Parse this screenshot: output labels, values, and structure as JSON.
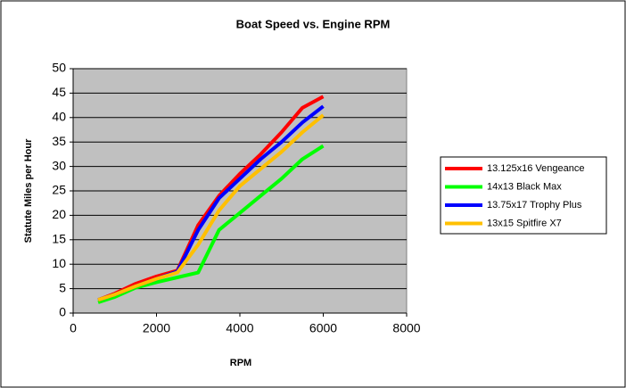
{
  "chart_data": {
    "type": "line",
    "title": "Boat Speed vs. Engine RPM",
    "x_label": "RPM",
    "y_label": "Statute Miles per Hour",
    "x": [
      600,
      1000,
      1500,
      2000,
      2500,
      3000,
      3500,
      4000,
      4500,
      5000,
      5500,
      6000
    ],
    "series": [
      {
        "name": "13.125x16 Vengeance",
        "color": "#ff0000",
        "values": [
          2.7,
          4,
          6,
          7.5,
          8.7,
          18,
          24,
          28.5,
          32.5,
          37,
          42,
          44.3
        ]
      },
      {
        "name": "14x13 Black Max",
        "color": "#00ff00",
        "values": [
          2.2,
          3.3,
          5.2,
          6.3,
          7.3,
          8.3,
          17,
          20.5,
          24,
          27.5,
          31.5,
          34.2
        ]
      },
      {
        "name": "13.75x17 Trophy Plus",
        "color": "#0000ff",
        "values": [
          2.7,
          3.8,
          5.5,
          7,
          8.5,
          17,
          23.5,
          27.5,
          31.5,
          35,
          39,
          42.3
        ]
      },
      {
        "name": "13x15 Spitfire X7",
        "color": "#ffc000",
        "values": [
          2.7,
          3.8,
          5.5,
          7,
          8.3,
          14,
          21,
          26,
          29.5,
          33,
          37,
          40.5
        ]
      }
    ],
    "xlim": [
      0,
      8000
    ],
    "xticks": [
      0,
      2000,
      4000,
      6000,
      8000
    ],
    "ylim": [
      0,
      50
    ],
    "yticks": [
      0,
      5,
      10,
      15,
      20,
      25,
      30,
      35,
      40,
      45,
      50
    ],
    "grid": true,
    "legend": "right"
  }
}
